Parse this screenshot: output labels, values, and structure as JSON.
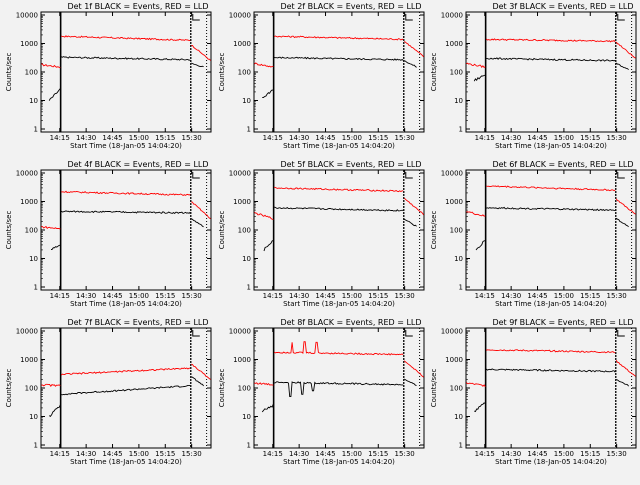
{
  "chart_data": [
    {
      "type": "line",
      "title": "Det 1f BLACK = Events, RED = LLD",
      "xlabel": "Start Time (18-Jan-05 14:04:20)",
      "ylabel": "Counts/sec",
      "yscale": "log",
      "ylim": [
        1,
        10000
      ],
      "xticks": [
        "14:15",
        "14:30",
        "14:45",
        "15:00",
        "15:15",
        "15:30"
      ],
      "yticks": [
        "1",
        "10",
        "100",
        "1000",
        "10000"
      ],
      "series": [
        {
          "color": "#000000",
          "segments": [
            [
              [
                "14:04:20",
                null
              ]
            ]
          ]
        }
      ],
      "segments_shape": {
        "lld_pre": [
          180,
          150
        ],
        "lld_main": [
          1800,
          1300
        ],
        "lld_post": [
          900,
          250
        ],
        "evt_pre": [
          10,
          25
        ],
        "evt_main": [
          330,
          270
        ],
        "evt_post": [
          200,
          150
        ]
      }
    },
    {
      "type": "line",
      "title": "Det 2f BLACK = Events, RED = LLD",
      "xlabel": "Start Time (18-Jan-05 14:04:20)",
      "ylabel": "Counts/sec",
      "yscale": "log",
      "ylim": [
        1,
        10000
      ],
      "xticks": [
        "14:15",
        "14:30",
        "14:45",
        "15:00",
        "15:15",
        "15:30"
      ],
      "yticks": [
        "1",
        "10",
        "100",
        "1000",
        "10000"
      ],
      "segments_shape": {
        "lld_pre": [
          200,
          150
        ],
        "lld_main": [
          1800,
          1400
        ],
        "lld_post": [
          1200,
          350
        ],
        "evt_pre": [
          12,
          25
        ],
        "evt_main": [
          320,
          270
        ],
        "evt_post": [
          250,
          150
        ]
      }
    },
    {
      "type": "line",
      "title": "Det 3f BLACK = Events, RED = LLD",
      "xlabel": "Start Time (18-Jan-05 14:04:20)",
      "ylabel": "Counts/sec",
      "yscale": "log",
      "ylim": [
        1,
        10000
      ],
      "xticks": [
        "14:15",
        "14:30",
        "14:45",
        "15:00",
        "15:15",
        "15:30"
      ],
      "yticks": [
        "1",
        "10",
        "100",
        "1000",
        "10000"
      ],
      "segments_shape": {
        "lld_pre": [
          200,
          150
        ],
        "lld_main": [
          1400,
          1200
        ],
        "lld_post": [
          1100,
          300
        ],
        "evt_pre": [
          50,
          80
        ],
        "evt_main": [
          300,
          250
        ],
        "evt_post": [
          200,
          120
        ]
      }
    },
    {
      "type": "line",
      "title": "Det 4f BLACK = Events, RED = LLD",
      "xlabel": "Start Time (18-Jan-05 14:04:20)",
      "ylabel": "Counts/sec",
      "yscale": "log",
      "ylim": [
        1,
        10000
      ],
      "xticks": [
        "14:15",
        "14:30",
        "14:45",
        "15:00",
        "15:15",
        "15:30"
      ],
      "yticks": [
        "1",
        "10",
        "100",
        "1000",
        "10000"
      ],
      "segments_shape": {
        "lld_pre": [
          130,
          110
        ],
        "lld_main": [
          2200,
          1700
        ],
        "lld_post": [
          1000,
          250
        ],
        "evt_pre": [
          20,
          30
        ],
        "evt_main": [
          450,
          400
        ],
        "evt_post": [
          250,
          130
        ]
      }
    },
    {
      "type": "line",
      "title": "Det 5f BLACK = Events, RED = LLD",
      "xlabel": "Start Time (18-Jan-05 14:04:20)",
      "ylabel": "Counts/sec",
      "yscale": "log",
      "ylim": [
        1,
        10000
      ],
      "xticks": [
        "14:15",
        "14:30",
        "14:45",
        "15:00",
        "15:15",
        "15:30"
      ],
      "yticks": [
        "1",
        "10",
        "100",
        "1000",
        "10000"
      ],
      "segments_shape": {
        "lld_pre": [
          400,
          250
        ],
        "lld_main": [
          3000,
          2300
        ],
        "lld_post": [
          1300,
          350
        ],
        "evt_pre": [
          20,
          45
        ],
        "evt_main": [
          600,
          480
        ],
        "evt_post": [
          250,
          130
        ]
      }
    },
    {
      "type": "line",
      "title": "Det 6f BLACK = Events, RED = LLD",
      "xlabel": "Start Time (18-Jan-05 14:04:20)",
      "ylabel": "Counts/sec",
      "yscale": "log",
      "ylim": [
        1,
        10000
      ],
      "xticks": [
        "14:15",
        "14:30",
        "14:45",
        "15:00",
        "15:15",
        "15:30"
      ],
      "yticks": [
        "1",
        "10",
        "100",
        "1000",
        "10000"
      ],
      "segments_shape": {
        "lld_pre": [
          450,
          300
        ],
        "lld_main": [
          3500,
          2500
        ],
        "lld_post": [
          1200,
          350
        ],
        "evt_pre": [
          20,
          45
        ],
        "evt_main": [
          600,
          500
        ],
        "evt_post": [
          250,
          130
        ]
      }
    },
    {
      "type": "line",
      "title": "Det 7f BLACK = Events, RED = LLD",
      "xlabel": "Start Time (18-Jan-05 14:04:20)",
      "ylabel": "Counts/sec",
      "yscale": "log",
      "ylim": [
        1,
        10000
      ],
      "xticks": [
        "14:15",
        "14:30",
        "14:45",
        "15:00",
        "15:15",
        "15:30"
      ],
      "yticks": [
        "1",
        "10",
        "100",
        "1000",
        "10000"
      ],
      "segments_shape": {
        "lld_pre": [
          130,
          120
        ],
        "lld_main": [
          300,
          500
        ],
        "lld_post": [
          700,
          200
        ],
        "evt_pre": [
          10,
          25
        ],
        "evt_main": [
          60,
          120
        ],
        "evt_post": [
          250,
          120
        ]
      }
    },
    {
      "type": "line",
      "title": "Det 8f BLACK = Events, RED = LLD",
      "xlabel": "Start Time (18-Jan-05 14:04:20)",
      "ylabel": "Counts/sec",
      "yscale": "log",
      "ylim": [
        1,
        10000
      ],
      "xticks": [
        "14:15",
        "14:30",
        "14:45",
        "15:00",
        "15:15",
        "15:30"
      ],
      "yticks": [
        "1",
        "10",
        "100",
        "1000",
        "10000"
      ],
      "segments_shape": {
        "lld_pre": [
          150,
          130
        ],
        "lld_main": [
          1800,
          1500
        ],
        "lld_post": [
          900,
          250
        ],
        "evt_pre": [
          15,
          25
        ],
        "evt_main": [
          160,
          130
        ],
        "evt_post": [
          200,
          120
        ]
      }
    },
    {
      "type": "line",
      "title": "Det 9f BLACK = Events, RED = LLD",
      "xlabel": "Start Time (18-Jan-05 14:04:20)",
      "ylabel": "Counts/sec",
      "yscale": "log",
      "ylim": [
        1,
        10000
      ],
      "xticks": [
        "14:15",
        "14:30",
        "14:45",
        "15:00",
        "15:15",
        "15:30"
      ],
      "yticks": [
        "1",
        "10",
        "100",
        "1000",
        "10000"
      ],
      "segments_shape": {
        "lld_pre": [
          150,
          120
        ],
        "lld_main": [
          2200,
          1800
        ],
        "lld_post": [
          900,
          250
        ],
        "evt_pre": [
          15,
          30
        ],
        "evt_main": [
          450,
          380
        ],
        "evt_post": [
          200,
          120
        ]
      }
    }
  ],
  "colors": {
    "events": "#000000",
    "lld": "#ff0000",
    "background": "#f2f2f2"
  }
}
